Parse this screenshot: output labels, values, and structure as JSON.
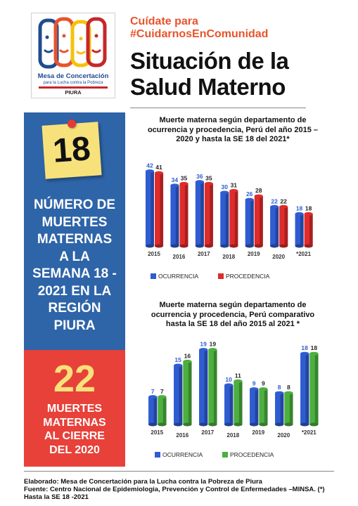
{
  "logo": {
    "name_line1": "Mesa de Concertación",
    "name_line2": "para la Lucha contra la Pobreza",
    "region": "PIURA"
  },
  "header": {
    "hashtag_line1": "Cuídate para",
    "hashtag_line2": "#CuidarnosEnComunidad",
    "title_line1": "Situación de la",
    "title_line2": "Salud Materno"
  },
  "left": {
    "big_number_1": "18",
    "text_1_lines": [
      "NÚMERO DE",
      "MUERTES",
      "MATERNAS",
      "A LA",
      "SEMANA 18 -",
      "2021 EN LA",
      "REGIÓN",
      "PIURA"
    ],
    "big_number_2": "22",
    "text_2_lines": [
      "MUERTES",
      "MATERNAS",
      "AL CIERRE",
      "DEL 2020"
    ]
  },
  "chart_data": [
    {
      "type": "bar",
      "title_lines": [
        "Muerte materna según departamento de",
        "ocurrencia  y procedencia, Perú del año 2015 –",
        "2020 y  hasta la SE 18 del 2021*"
      ],
      "categories": [
        "2015",
        "2016",
        "2017",
        "2018",
        "2019",
        "2020",
        "*2021"
      ],
      "series": [
        {
          "name": "OCURRENCIA",
          "values": [
            42,
            34,
            36,
            30,
            26,
            22,
            18
          ]
        },
        {
          "name": "PROCEDENCIA",
          "values": [
            41,
            35,
            35,
            31,
            28,
            22,
            18
          ]
        }
      ],
      "ylim": [
        0,
        45
      ],
      "legend": "bottom",
      "colors": [
        "#2f5cd1",
        "#e02b2b"
      ]
    },
    {
      "type": "bar",
      "title_lines": [
        "Muerte materna según departamento de",
        "ocurrencia  y procedencia, Perú  comparativo",
        "hasta la SE 18  del año 2015 al 2021 *"
      ],
      "categories": [
        "2015",
        "2016",
        "2017",
        "2018",
        "2019",
        "2020",
        "*2021"
      ],
      "series": [
        {
          "name": "OCURRENCIA",
          "values": [
            7,
            15,
            19,
            10,
            9,
            8,
            18
          ]
        },
        {
          "name": "PROCEDENCIA",
          "values": [
            7,
            16,
            19,
            11,
            9,
            8,
            18
          ]
        }
      ],
      "ylim": [
        0,
        20
      ],
      "legend": "bottom",
      "colors": [
        "#2f5cd1",
        "#4caf3f"
      ]
    }
  ],
  "footer": {
    "line1": "Elaborado: Mesa de Concertación para la Lucha contra la Pobreza de Piura",
    "line2": "Fuente:  Centro Nacional de Epidemiologia, Prevención y Control de Enfermedades –MINSA.  (*)",
    "line3": "Hasta la SE 18 -2021"
  }
}
